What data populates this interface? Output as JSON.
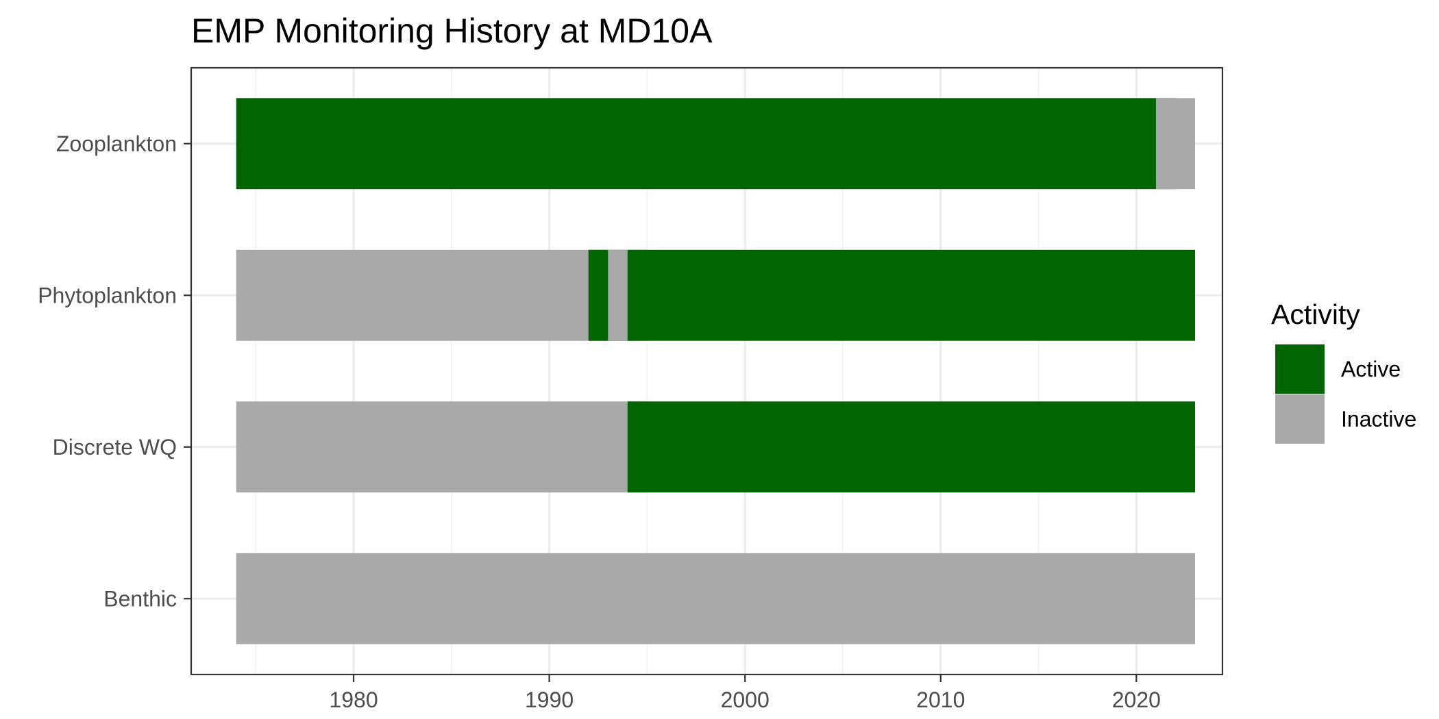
{
  "chart_data": {
    "type": "bar",
    "orientation": "horizontal-timeline",
    "title": "EMP Monitoring History at MD10A",
    "xlabel": "",
    "ylabel": "",
    "xlim": [
      1971.7,
      2024.4
    ],
    "xticks": [
      1980,
      1990,
      2000,
      2010,
      2020
    ],
    "xtick_labels": [
      "1980",
      "1990",
      "2000",
      "2010",
      "2020"
    ],
    "grid": true,
    "legend": {
      "title": "Activity",
      "placement": "right",
      "entries": [
        {
          "key": "active",
          "label": "Active",
          "color": "#006400"
        },
        {
          "key": "inactive",
          "label": "Inactive",
          "color": "#A9A9A9"
        }
      ]
    },
    "categories": [
      "Zooplankton",
      "Phytoplankton",
      "Discrete WQ",
      "Benthic"
    ],
    "segments": [
      {
        "category": "Zooplankton",
        "status": "active",
        "start": 1974,
        "end": 2021
      },
      {
        "category": "Zooplankton",
        "status": "inactive",
        "start": 2021,
        "end": 2022
      },
      {
        "category": "Phytoplankton",
        "status": "inactive",
        "start": 1974,
        "end": 1992
      },
      {
        "category": "Phytoplankton",
        "status": "active",
        "start": 1992,
        "end": 1993
      },
      {
        "category": "Phytoplankton",
        "status": "inactive",
        "start": 1993,
        "end": 1994
      },
      {
        "category": "Phytoplankton",
        "status": "active",
        "start": 1994,
        "end": 2022
      },
      {
        "category": "Discrete WQ",
        "status": "inactive",
        "start": 1974,
        "end": 1994
      },
      {
        "category": "Discrete WQ",
        "status": "active",
        "start": 1994,
        "end": 2022
      },
      {
        "category": "Benthic",
        "status": "inactive",
        "start": 1974,
        "end": 2022
      }
    ]
  }
}
